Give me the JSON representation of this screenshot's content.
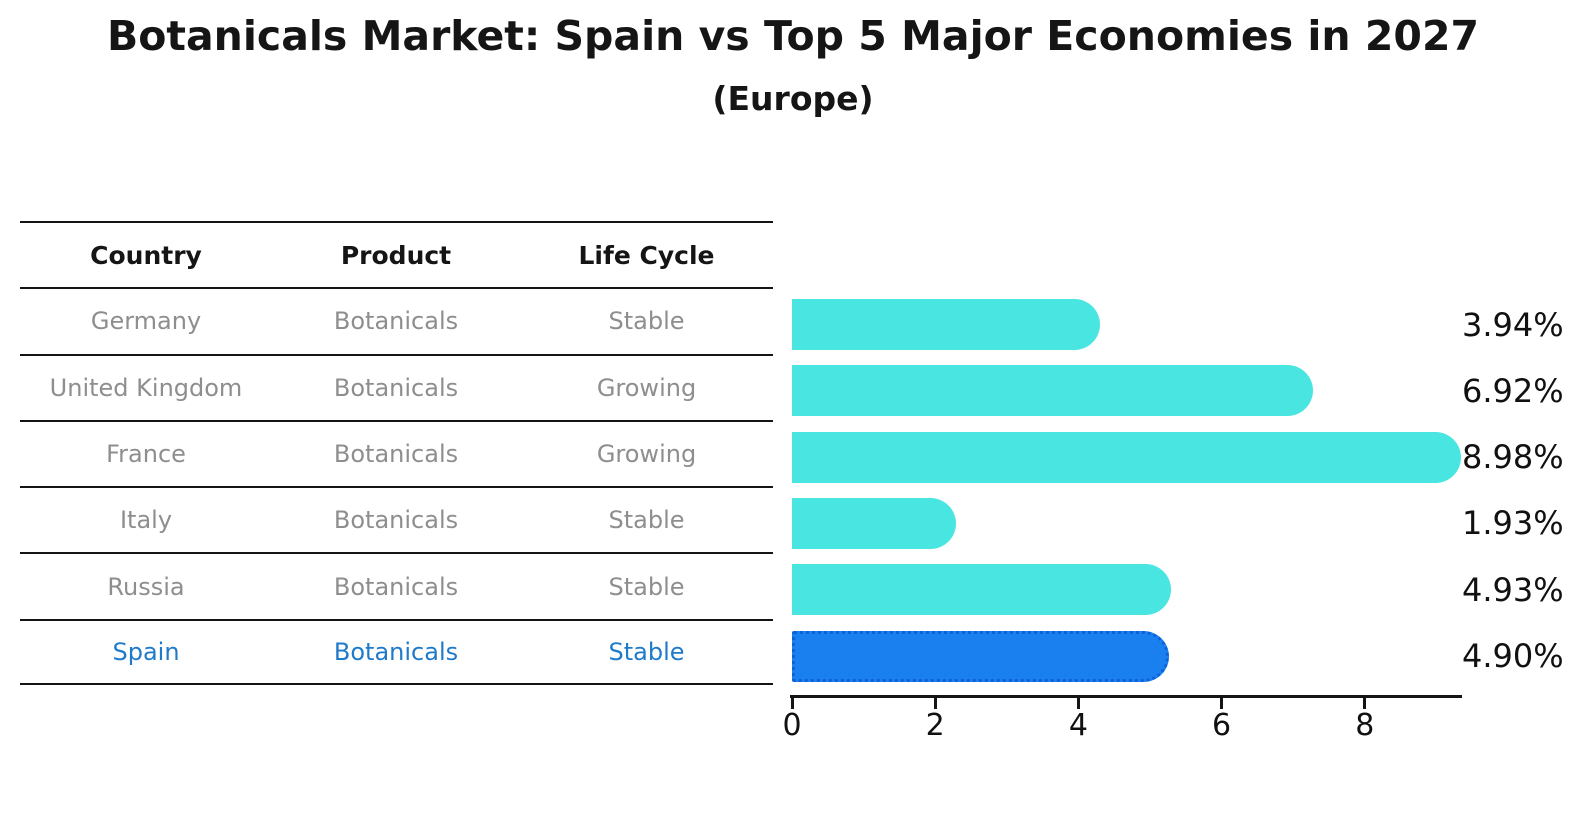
{
  "title": "Botanicals Market: Spain vs Top 5 Major Economies in 2027",
  "subtitle": "(Europe)",
  "table": {
    "headers": [
      "Country",
      "Product",
      "Life Cycle"
    ],
    "rows": [
      {
        "country": "Germany",
        "product": "Botanicals",
        "life_cycle": "Stable",
        "highlight": false
      },
      {
        "country": "United Kingdom",
        "product": "Botanicals",
        "life_cycle": "Growing",
        "highlight": false
      },
      {
        "country": "France",
        "product": "Botanicals",
        "life_cycle": "Growing",
        "highlight": false
      },
      {
        "country": "Italy",
        "product": "Botanicals",
        "life_cycle": "Stable",
        "highlight": false
      },
      {
        "country": "Russia",
        "product": "Botanicals",
        "life_cycle": "Stable",
        "highlight": true
      }
    ],
    "highlight_row": {
      "country": "Spain",
      "product": "Botanicals",
      "life_cycle": "Stable"
    }
  },
  "chart_data": {
    "type": "bar",
    "orientation": "horizontal",
    "title": "Botanicals Market: Spain vs Top 5 Major Economies in 2027",
    "subtitle": "(Europe)",
    "categories": [
      "Germany",
      "United Kingdom",
      "France",
      "Italy",
      "Russia",
      "Spain"
    ],
    "values": [
      3.94,
      6.92,
      8.98,
      1.93,
      4.93,
      4.9
    ],
    "value_labels": [
      "3.94%",
      "6.92%",
      "8.98%",
      "1.93%",
      "4.93%",
      "4.90%"
    ],
    "xlabel": "",
    "ylabel": "",
    "xlim": [
      0,
      9.35
    ],
    "xticks": [
      0,
      2,
      4,
      6,
      8
    ],
    "xtick_labels": [
      "0",
      "2",
      "4",
      "6",
      "8"
    ],
    "grid": false,
    "legend": "none",
    "highlight_index": 5,
    "bar_color": "#48e5e1",
    "highlight_bar_color": "#1a80f0",
    "highlight_bar_border_color": "#0e62d9",
    "highlight_text_color": "#1f7ac9",
    "text_color": "#8e8e8e",
    "axis_color": "#141414"
  }
}
